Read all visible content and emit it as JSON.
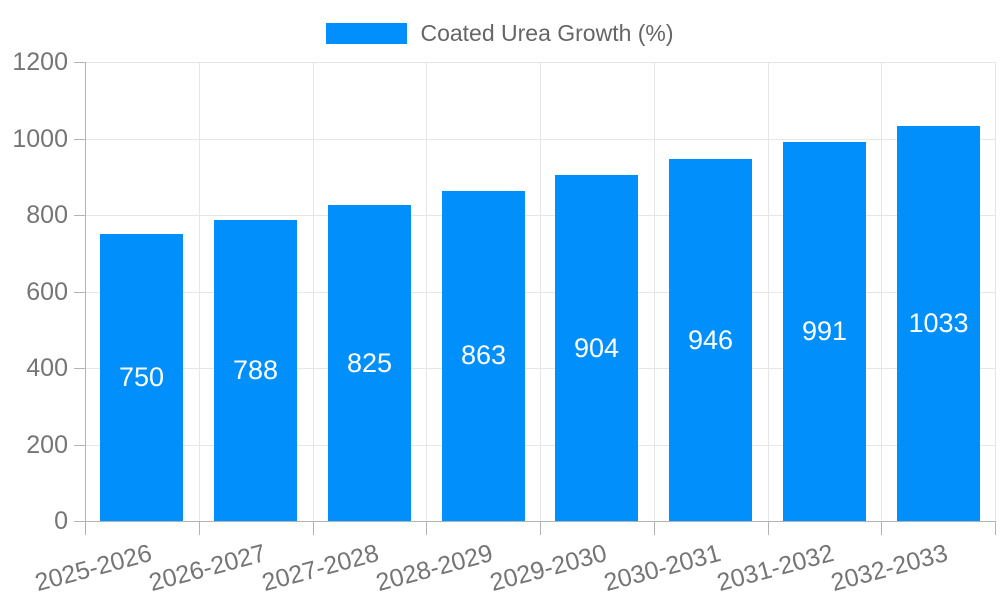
{
  "chart_data": {
    "type": "bar",
    "title": "",
    "categories": [
      "2025-2026",
      "2026-2027",
      "2027-2028",
      "2028-2029",
      "2029-2030",
      "2030-2031",
      "2031-2032",
      "2032-2033"
    ],
    "series": [
      {
        "name": "Coated Urea Growth (%)",
        "values": [
          750,
          788,
          825,
          863,
          904,
          946,
          991,
          1033
        ]
      }
    ],
    "value_labels": [
      "750",
      "788",
      "825",
      "863",
      "904",
      "946",
      "991",
      "1033"
    ],
    "xlabel": "",
    "ylabel": "",
    "ylim": [
      0,
      1200
    ],
    "y_ticks": [
      0,
      200,
      400,
      600,
      800,
      1000,
      1200
    ],
    "grid": true,
    "legend_position": "top",
    "x_label_rotation_deg": -15,
    "colors": {
      "bar": "#008FFB",
      "value_label": "#ffffff",
      "axis_label": "#757575",
      "legend_text": "#666666",
      "gridline": "#e6e6e6",
      "axis_line": "#b3b3b3",
      "background": "#ffffff"
    }
  }
}
